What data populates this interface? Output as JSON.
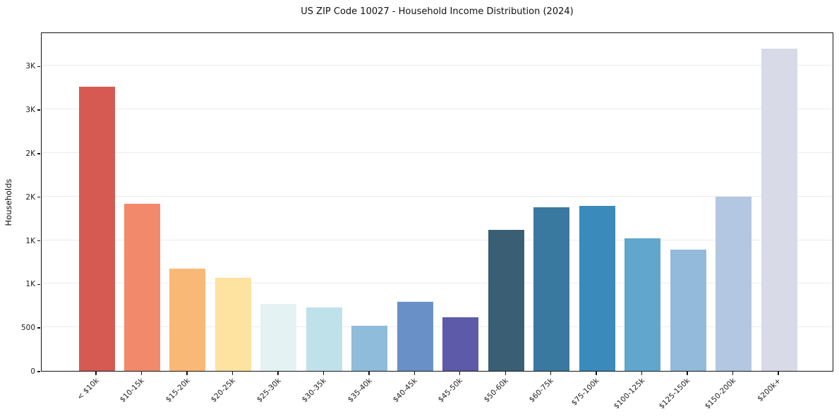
{
  "title": "US ZIP Code 10027 - Household Income Distribution (2024)",
  "chart_data": {
    "type": "bar",
    "title": "US ZIP Code 10027 - Household Income Distribution (2024)",
    "xlabel": "",
    "ylabel": "Households",
    "categories": [
      "< $10k",
      "$10-15k",
      "$15-20k",
      "$20-25k",
      "$25-30k",
      "$30-35k",
      "$35-40k",
      "$40-45k",
      "$45-50k",
      "$50-60k",
      "$60-75k",
      "$75-100k",
      "$100-125k",
      "$125-150k",
      "$150-200k",
      "$200k+"
    ],
    "values": [
      3260,
      1920,
      1170,
      1070,
      770,
      730,
      515,
      790,
      615,
      1615,
      1880,
      1890,
      1520,
      1390,
      2000,
      3700
    ],
    "bar_colors": [
      "#d65a52",
      "#f2896a",
      "#fab877",
      "#fde2a0",
      "#e4f2f4",
      "#bfe1ea",
      "#8ebcda",
      "#6991c7",
      "#5d5aaa",
      "#3a5f75",
      "#39799f",
      "#3a8abc",
      "#61a7cd",
      "#93badb",
      "#b4c7e2",
      "#d8dae7"
    ],
    "ylim": [
      0,
      3890
    ],
    "yticks": [
      {
        "value": 0,
        "label": "0"
      },
      {
        "value": 500,
        "label": "500"
      },
      {
        "value": 1000,
        "label": "1K"
      },
      {
        "value": 1500,
        "label": "1K"
      },
      {
        "value": 2000,
        "label": "2K"
      },
      {
        "value": 2500,
        "label": "2K"
      },
      {
        "value": 3000,
        "label": "3K"
      },
      {
        "value": 3500,
        "label": "3K"
      }
    ],
    "grid": "horizontal",
    "gridline_color": "#ececf0",
    "legend_position": "none",
    "background_color": "#ffffff",
    "spine_color": "#151515",
    "xlabel_rotation_deg": 45
  }
}
